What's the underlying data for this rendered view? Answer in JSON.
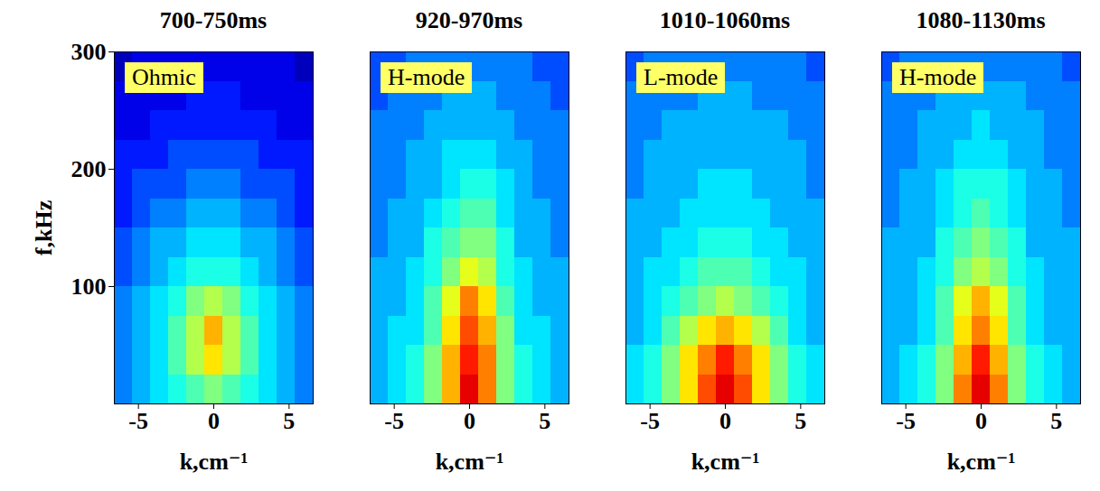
{
  "chart_data": [
    {
      "type": "heatmap",
      "title": "700-750ms",
      "annotation": "Ohmic",
      "xlabel": "k,cm⁻¹",
      "ylabel": "f,kHz",
      "xlim": [
        -6.6,
        6.6
      ],
      "xticks": [
        -5,
        0,
        5
      ],
      "ylim": [
        0,
        300
      ],
      "yticks": [
        100,
        200,
        300
      ],
      "k_edges": [
        -6.6,
        -5.4,
        -4.2,
        -3,
        -1.8,
        -0.6,
        0.6,
        1.8,
        3,
        4.2,
        5.4,
        6.6
      ],
      "f_edges": [
        0,
        25,
        50,
        75,
        100,
        125,
        150,
        175,
        200,
        225,
        250,
        275,
        300
      ],
      "color_range": [
        0,
        10
      ],
      "cells": [
        [
          2.5,
          3,
          3.5,
          4,
          4.5,
          5,
          4.5,
          4,
          3.5,
          3,
          2.5
        ],
        [
          2.5,
          3,
          3.5,
          4.5,
          5.5,
          6.5,
          5.5,
          4.5,
          3.5,
          3,
          2.5
        ],
        [
          2.5,
          3,
          3.5,
          4.5,
          5.5,
          7,
          5.5,
          4.5,
          3.5,
          3,
          2.5
        ],
        [
          2.5,
          3,
          3.5,
          4,
          5,
          5.5,
          5,
          4,
          3.5,
          3,
          2.5
        ],
        [
          2,
          2.5,
          3,
          3.5,
          4,
          4,
          4,
          3.5,
          3,
          2.5,
          2
        ],
        [
          2,
          2.5,
          3,
          3,
          3.5,
          3.5,
          3.5,
          3,
          3,
          2.5,
          2
        ],
        [
          1.5,
          2,
          2.5,
          2.5,
          3,
          3,
          3,
          2.5,
          2.5,
          2,
          1.5
        ],
        [
          1.5,
          2,
          2,
          2,
          2.5,
          2.5,
          2.5,
          2,
          2,
          2,
          1.5
        ],
        [
          1.5,
          1.5,
          1.5,
          2,
          2,
          2,
          2,
          2,
          1.5,
          1.5,
          1.5
        ],
        [
          1,
          1,
          1.5,
          1.5,
          1.5,
          1.5,
          1.5,
          1.5,
          1.5,
          1,
          1
        ],
        [
          1,
          1,
          1,
          1,
          1.5,
          1.5,
          1.5,
          1,
          1,
          1,
          1
        ],
        [
          0.5,
          1,
          1,
          1,
          1,
          1,
          1,
          1,
          1,
          1,
          0.5
        ]
      ]
    },
    {
      "type": "heatmap",
      "title": "920-970ms",
      "annotation": "H-mode",
      "xlabel": "k,cm⁻¹",
      "xlim": [
        -6.6,
        6.6
      ],
      "xticks": [
        -5,
        0,
        5
      ],
      "ylim": [
        0,
        300
      ],
      "tick_labels": "x",
      "k_edges": [
        -6.6,
        -5.4,
        -4.2,
        -3,
        -1.8,
        -0.6,
        0.6,
        1.8,
        3,
        4.2,
        5.4,
        6.6
      ],
      "f_edges": [
        0,
        25,
        50,
        75,
        100,
        125,
        150,
        175,
        200,
        225,
        250,
        275,
        300
      ],
      "color_range": [
        0,
        10
      ],
      "cells": [
        [
          3,
          3.5,
          4,
          5,
          7,
          9,
          7.5,
          5,
          4,
          3.5,
          3
        ],
        [
          3,
          3.5,
          4,
          5,
          7,
          8.5,
          7.5,
          5,
          4,
          3.5,
          3
        ],
        [
          3,
          3.5,
          3.5,
          4.5,
          6.5,
          8,
          7,
          5,
          3.5,
          3.5,
          3
        ],
        [
          3,
          3,
          3.5,
          4.5,
          6,
          7.5,
          6.5,
          4.5,
          3.5,
          3,
          3
        ],
        [
          3,
          3,
          3.5,
          4,
          5,
          6,
          5.5,
          4,
          3.5,
          3,
          3
        ],
        [
          2.5,
          3,
          3,
          4,
          4.5,
          5,
          5,
          4,
          3,
          3,
          2.5
        ],
        [
          2.5,
          3,
          3,
          3.5,
          4,
          4.5,
          4.5,
          3.5,
          3,
          3,
          2.5
        ],
        [
          2.5,
          2.5,
          3,
          3,
          3.5,
          4,
          4,
          3.5,
          3,
          2.5,
          2.5
        ],
        [
          2.5,
          2.5,
          3,
          3,
          3.5,
          3.5,
          3.5,
          3,
          3,
          2.5,
          2.5
        ],
        [
          2.5,
          2.5,
          2.5,
          3,
          3,
          3,
          3,
          3,
          2.5,
          2.5,
          2.5
        ],
        [
          2,
          2.5,
          2.5,
          2.5,
          3,
          3,
          3,
          2.5,
          2.5,
          2.5,
          2
        ],
        [
          2,
          2,
          2.5,
          2.5,
          2.5,
          2.5,
          2.5,
          2.5,
          2.5,
          2,
          2
        ]
      ]
    },
    {
      "type": "heatmap",
      "title": "1010-1060ms",
      "annotation": "L-mode",
      "xlabel": "k,cm⁻¹",
      "xlim": [
        -6.6,
        6.6
      ],
      "xticks": [
        -5,
        0,
        5
      ],
      "ylim": [
        0,
        300
      ],
      "tick_labels": "x",
      "k_edges": [
        -6.6,
        -5.4,
        -4.2,
        -3,
        -1.8,
        -0.6,
        0.6,
        1.8,
        3,
        4.2,
        5.4,
        6.6
      ],
      "f_edges": [
        0,
        25,
        50,
        75,
        100,
        125,
        150,
        175,
        200,
        225,
        250,
        275,
        300
      ],
      "color_range": [
        0,
        10
      ],
      "cells": [
        [
          3.5,
          4,
          5,
          6.5,
          8,
          9,
          8,
          6.5,
          5,
          4,
          3.5
        ],
        [
          3.5,
          4,
          5,
          6.5,
          7.5,
          8.5,
          7.5,
          6.5,
          5,
          4,
          3.5
        ],
        [
          3,
          3.5,
          4.5,
          5.5,
          6.5,
          7,
          6.5,
          5.5,
          4.5,
          3.5,
          3
        ],
        [
          3,
          3.5,
          4,
          4.5,
          5,
          5.5,
          5,
          4.5,
          4,
          3.5,
          3
        ],
        [
          3,
          3.5,
          3.5,
          4,
          4.5,
          4.5,
          4.5,
          4,
          3.5,
          3.5,
          3
        ],
        [
          3,
          3,
          3.5,
          3.5,
          4,
          4,
          4,
          3.5,
          3.5,
          3,
          3
        ],
        [
          3,
          3,
          3,
          3.5,
          3.5,
          3.5,
          3.5,
          3.5,
          3,
          3,
          3
        ],
        [
          2.5,
          3,
          3,
          3,
          3.5,
          3.5,
          3.5,
          3,
          3,
          3,
          2.5
        ],
        [
          2.5,
          3,
          3,
          3,
          3,
          3,
          3,
          3,
          3,
          3,
          2.5
        ],
        [
          2.5,
          2.5,
          3,
          3,
          3,
          3,
          3,
          3,
          3,
          2.5,
          2.5
        ],
        [
          2.5,
          2.5,
          2.5,
          2.5,
          3,
          3,
          3,
          2.5,
          2.5,
          2.5,
          2.5
        ],
        [
          2,
          2.5,
          2.5,
          2.5,
          2.5,
          2.5,
          2.5,
          2.5,
          2.5,
          2.5,
          2
        ]
      ]
    },
    {
      "type": "heatmap",
      "title": "1080-1130ms",
      "annotation": "H-mode",
      "xlabel": "k,cm⁻¹",
      "xlim": [
        -6.6,
        6.6
      ],
      "xticks": [
        -5,
        0,
        5
      ],
      "ylim": [
        0,
        300
      ],
      "tick_labels": "x",
      "k_edges": [
        -6.6,
        -5.4,
        -4.2,
        -3,
        -1.8,
        -0.6,
        0.6,
        1.8,
        3,
        4.2,
        5.4,
        6.6
      ],
      "f_edges": [
        0,
        25,
        50,
        75,
        100,
        125,
        150,
        175,
        200,
        225,
        250,
        275,
        300
      ],
      "color_range": [
        0,
        10
      ],
      "cells": [
        [
          3,
          3.5,
          4,
          5,
          7.5,
          9,
          7.5,
          5,
          4,
          3.5,
          3
        ],
        [
          3,
          3.5,
          4,
          5,
          7,
          8.5,
          7,
          5,
          4,
          3.5,
          3
        ],
        [
          3,
          3,
          3.5,
          4.5,
          6.5,
          7.5,
          6.5,
          4.5,
          3.5,
          3,
          3
        ],
        [
          3,
          3,
          3.5,
          4.5,
          6,
          7,
          6,
          4.5,
          3.5,
          3,
          3
        ],
        [
          3,
          3,
          3.5,
          4,
          5,
          5.5,
          5,
          4,
          3.5,
          3,
          3
        ],
        [
          3,
          3,
          3,
          4,
          4.5,
          5,
          4.5,
          4,
          3,
          3,
          3
        ],
        [
          2.5,
          3,
          3,
          3.5,
          4,
          4.5,
          4,
          3.5,
          3,
          3,
          2.5
        ],
        [
          2.5,
          3,
          3,
          3.5,
          4,
          4,
          4,
          3.5,
          3,
          3,
          2.5
        ],
        [
          2.5,
          2.5,
          3,
          3,
          3.5,
          3.5,
          3.5,
          3,
          3,
          2.5,
          2.5
        ],
        [
          2.5,
          2.5,
          3,
          3,
          3,
          3.5,
          3,
          3,
          3,
          2.5,
          2.5
        ],
        [
          2.5,
          2.5,
          2.5,
          3,
          3,
          3,
          3,
          3,
          2.5,
          2.5,
          2.5
        ],
        [
          2,
          2.5,
          2.5,
          2.5,
          2.5,
          2.5,
          2.5,
          2.5,
          2.5,
          2.5,
          2
        ]
      ]
    }
  ]
}
